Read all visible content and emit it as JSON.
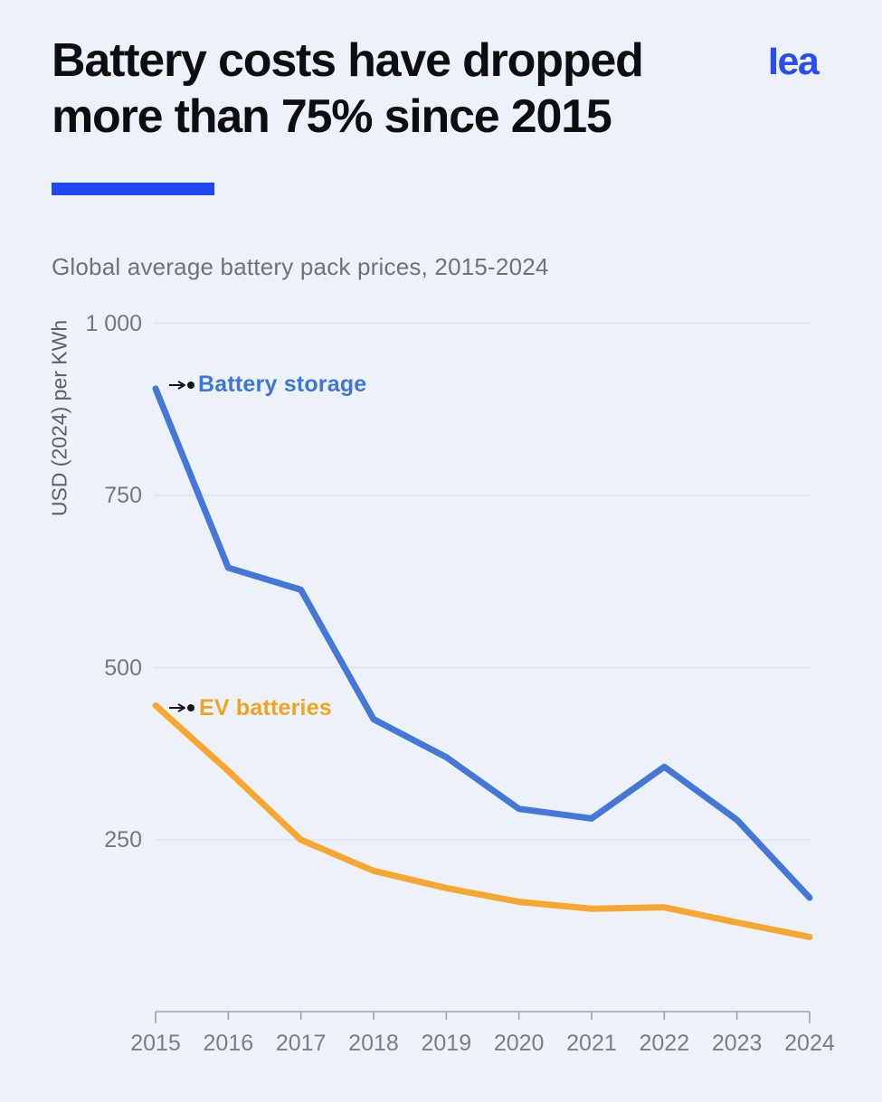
{
  "header": {
    "title_line1": "Battery costs have dropped",
    "title_line2": "more than 75% since 2015",
    "logo_text": "Iea",
    "subtitle": "Global average battery pack prices, 2015-2024"
  },
  "colors": {
    "background": "#edf1fa",
    "accent_bar_blue": "#1d48f3",
    "logo_blue": "#2b4cf0",
    "storage_line_blue": "#4377d8",
    "storage_label_blue": "#3c76d8",
    "ev_line_orange": "#f7a72f",
    "ev_label_orange": "#f2a21d",
    "gridline_gray": "#dfe2e9",
    "axis_gray": "#9ca1a9",
    "leader_black": "#15161a"
  },
  "chart_data": {
    "type": "line",
    "title": "Global average battery pack prices, 2015-2024",
    "xlabel": "",
    "ylabel": "USD (2024) per KWh",
    "x": [
      2015,
      2016,
      2017,
      2018,
      2019,
      2020,
      2021,
      2022,
      2023,
      2024
    ],
    "series": [
      {
        "name": "Battery storage",
        "color": "#4377d8",
        "values": [
          905,
          645,
          613,
          425,
          370,
          295,
          281,
          356,
          279,
          166
        ]
      },
      {
        "name": "EV batteries",
        "color": "#f7a72f",
        "values": [
          445,
          350,
          250,
          205,
          180,
          160,
          150,
          152,
          130,
          109
        ]
      }
    ],
    "yticks": [
      {
        "value": 1000,
        "label": "1 000"
      },
      {
        "value": 750,
        "label": "750"
      },
      {
        "value": 500,
        "label": "500"
      },
      {
        "value": 250,
        "label": "250"
      }
    ],
    "xticks": [
      "2015",
      "2016",
      "2017",
      "2018",
      "2019",
      "2020",
      "2021",
      "2022",
      "2023",
      "2024"
    ],
    "ylim": [
      0,
      1050
    ],
    "grid": true,
    "legend_position": "inline-annotations"
  }
}
